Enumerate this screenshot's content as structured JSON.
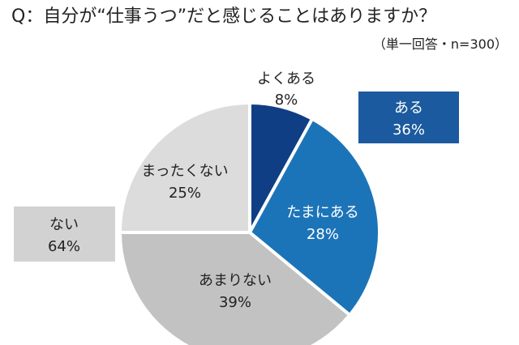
{
  "title": "Q：自分が“仕事うつ”だと感じることはありますか？",
  "subtitle": "（単一回答・n=300）",
  "chart_data": {
    "type": "pie",
    "title": "Q：自分が“仕事うつ”だと感じることはありますか？",
    "subtitle": "（単一回答・n=300）",
    "slices": [
      {
        "label": "よくある",
        "value": 8,
        "value_label": "8%",
        "color": "#0f3e84"
      },
      {
        "label": "たまにある",
        "value": 28,
        "value_label": "28%",
        "color": "#1c74b8"
      },
      {
        "label": "あまりない",
        "value": 39,
        "value_label": "39%",
        "color": "#c2c2c2"
      },
      {
        "label": "まったくない",
        "value": 25,
        "value_label": "25%",
        "color": "#dcdcdc"
      }
    ],
    "groups": [
      {
        "label": "ある",
        "value_label": "36%",
        "color": "#1b5a9e"
      },
      {
        "label": "ない",
        "value_label": "64%",
        "color": "#d2d2d2"
      }
    ]
  }
}
